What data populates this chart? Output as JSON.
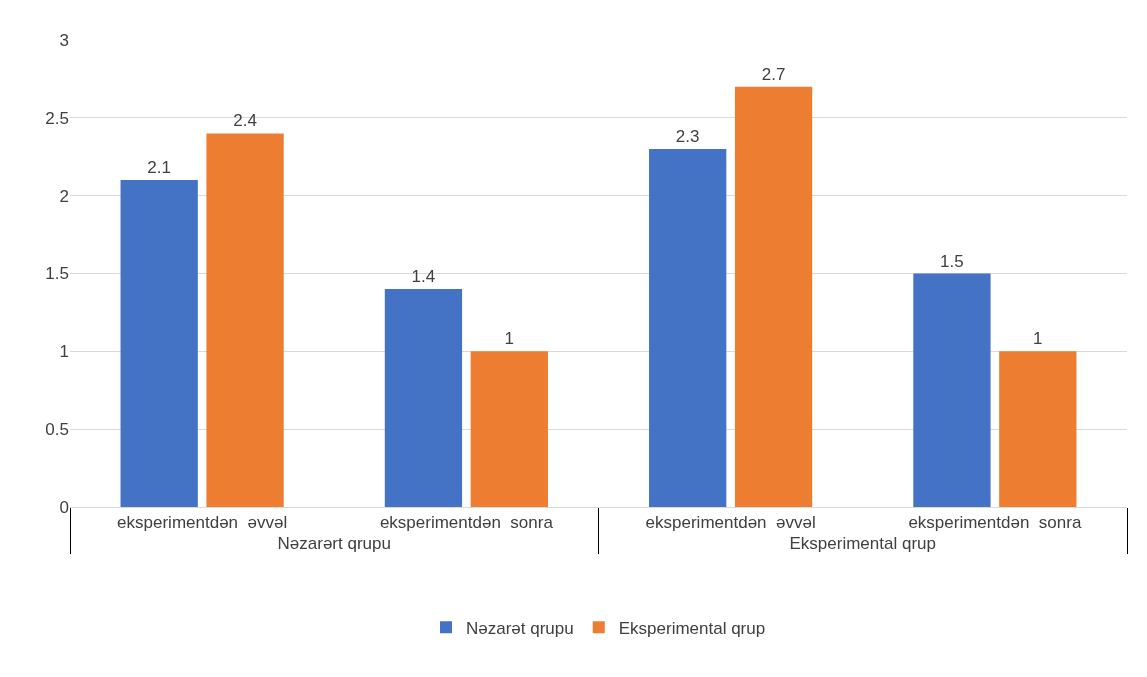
{
  "chart_data": {
    "type": "bar",
    "categories": [
      "eksperimentdən  əvvəl",
      "eksperimentdən  sonra",
      "eksperimentdən  əvvəl",
      "eksperimentdən  sonra"
    ],
    "annotations": [
      "Nəzarərt qrupu",
      "Eksperimental qrup"
    ],
    "series": [
      {
        "name": "Nəzarət qrupu",
        "color": "#4472c4",
        "values": [
          2.1,
          1.4,
          2.3,
          1.5
        ]
      },
      {
        "name": "Eksperimental qrup",
        "color": "#ed7d31",
        "values": [
          2.4,
          1,
          2.7,
          1
        ]
      }
    ],
    "ylim": [
      0,
      3
    ],
    "yticks": [
      0,
      0.5,
      1,
      1.5,
      2,
      2.5,
      3
    ],
    "grid": "y",
    "legend": "bottom",
    "data_labels": true
  }
}
